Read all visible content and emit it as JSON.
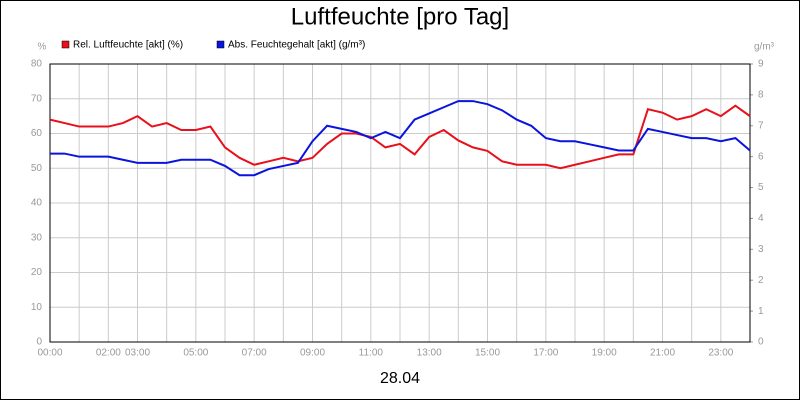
{
  "chart_data": {
    "type": "line",
    "title": "Luftfeuchte [pro Tag]",
    "xlabel": "28.04",
    "ylabel": "%",
    "y2label": "g/m³",
    "x": [
      0,
      0.5,
      1,
      1.5,
      2,
      2.5,
      3,
      3.5,
      4,
      4.5,
      5,
      5.5,
      6,
      6.5,
      7,
      7.5,
      8,
      8.5,
      9,
      9.5,
      10,
      10.5,
      11,
      11.5,
      12,
      12.5,
      13,
      13.5,
      14,
      14.5,
      15,
      15.5,
      16,
      16.5,
      17,
      17.5,
      18,
      18.5,
      19,
      19.5,
      20,
      20.5,
      21,
      21.5,
      22,
      22.5,
      23,
      23.5,
      24
    ],
    "series": [
      {
        "name": "Rel. Luftfeuchte [akt] (%)",
        "color": "#e8101a",
        "values": [
          64,
          63,
          62,
          62,
          62,
          63,
          65,
          62,
          63,
          61,
          61,
          62,
          56,
          53,
          51,
          52,
          53,
          52,
          53,
          57,
          60,
          60,
          59,
          56,
          57,
          54,
          59,
          61,
          58,
          56,
          55,
          52,
          51,
          51,
          51,
          50,
          51,
          52,
          53,
          54,
          54,
          67,
          66,
          64,
          65,
          67,
          65,
          68,
          65
        ]
      },
      {
        "name": "Abs. Feuchtegehalt [akt] (g/m³)",
        "color": "#0a14dc",
        "axis": "y2",
        "values": [
          6.1,
          6.1,
          6.0,
          6.0,
          6.0,
          5.9,
          5.8,
          5.8,
          5.8,
          5.9,
          5.9,
          5.9,
          5.7,
          5.4,
          5.4,
          5.6,
          5.7,
          5.8,
          6.5,
          7.0,
          6.9,
          6.8,
          6.6,
          6.8,
          6.6,
          7.2,
          7.4,
          7.6,
          7.8,
          7.8,
          7.7,
          7.5,
          7.2,
          7.0,
          6.6,
          6.5,
          6.5,
          6.4,
          6.3,
          6.2,
          6.2,
          6.9,
          6.8,
          6.7,
          6.6,
          6.6,
          6.5,
          6.6,
          6.2
        ]
      }
    ],
    "xlim": [
      0,
      24
    ],
    "xticks": [
      {
        "value": 0,
        "label": "00:00"
      },
      {
        "value": 2,
        "label": "02:00"
      },
      {
        "value": 3,
        "label": "03:00"
      },
      {
        "value": 5,
        "label": "05:00"
      },
      {
        "value": 7,
        "label": "07:00"
      },
      {
        "value": 9,
        "label": "09:00"
      },
      {
        "value": 11,
        "label": "11:00"
      },
      {
        "value": 13,
        "label": "13:00"
      },
      {
        "value": 15,
        "label": "15:00"
      },
      {
        "value": 17,
        "label": "17:00"
      },
      {
        "value": 19,
        "label": "19:00"
      },
      {
        "value": 21,
        "label": "21:00"
      },
      {
        "value": 23,
        "label": "23:00"
      }
    ],
    "xminorticks": [
      1,
      4,
      6,
      8,
      10,
      12,
      14,
      16,
      18,
      20,
      22,
      24
    ],
    "ylim": [
      0,
      80
    ],
    "yticks": [
      0,
      10,
      20,
      30,
      40,
      50,
      60,
      70,
      80
    ],
    "y2lim": [
      0,
      9
    ],
    "y2ticks": [
      0,
      1,
      2,
      3,
      4,
      5,
      6,
      7,
      8,
      9
    ],
    "grid": true
  }
}
